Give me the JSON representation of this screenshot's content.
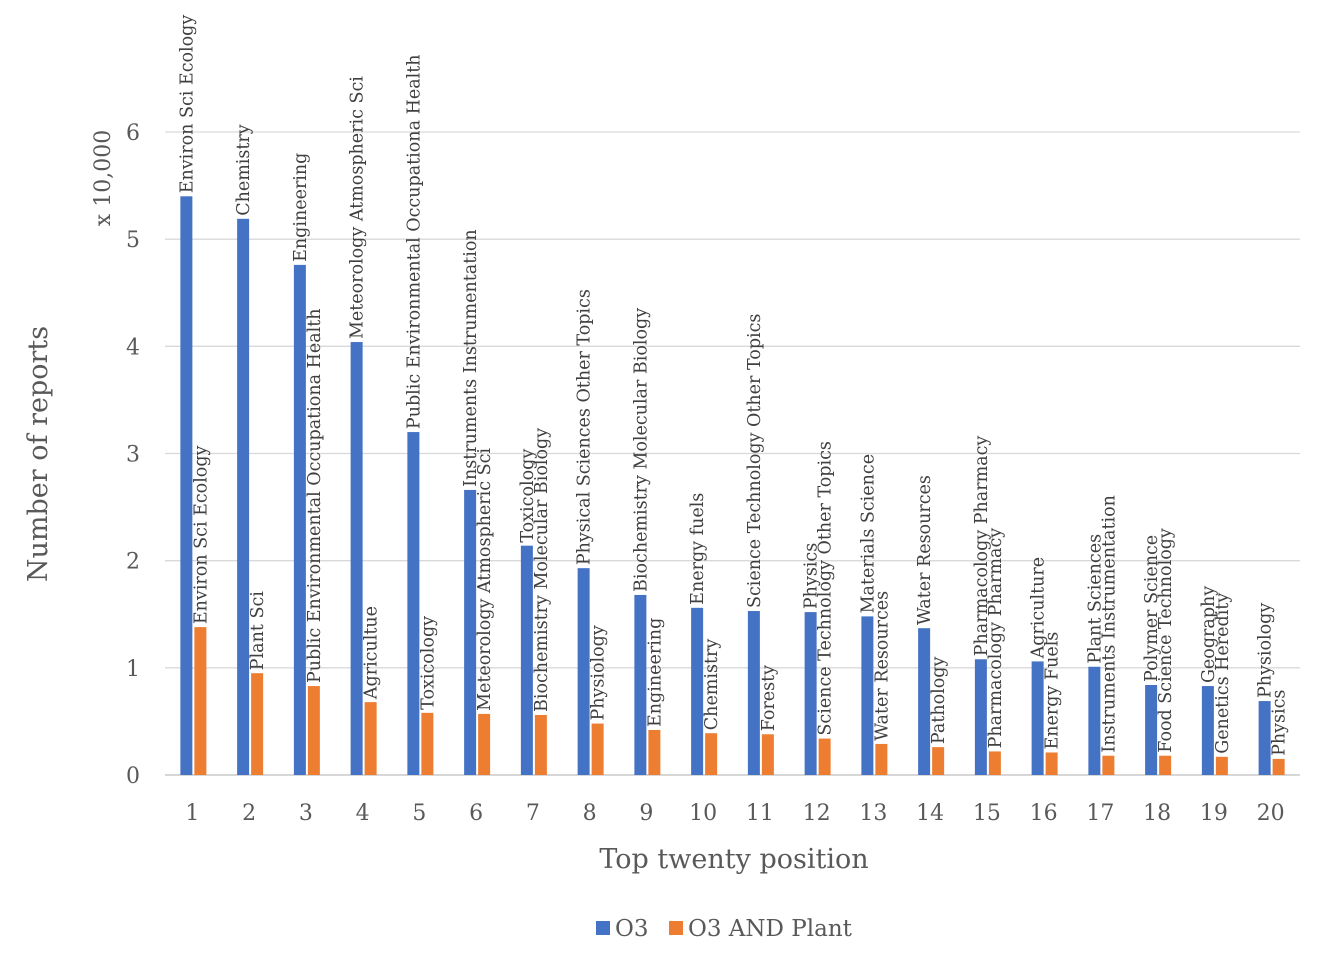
{
  "colors": {
    "o3": "#4472C4",
    "o3_plant": "#ED7D31"
  },
  "chart_data": {
    "type": "bar",
    "title": "",
    "xlabel": "Top twenty position",
    "ylabel": "Number of reports",
    "yunit": "x 10,000",
    "ylim": [
      0,
      6
    ],
    "yticks": [
      "0",
      "1",
      "2",
      "3",
      "4",
      "5",
      "6"
    ],
    "grid": true,
    "legend_position": "bottom",
    "categories": [
      "1",
      "2",
      "3",
      "4",
      "5",
      "6",
      "7",
      "8",
      "9",
      "10",
      "11",
      "12",
      "13",
      "14",
      "15",
      "16",
      "17",
      "18",
      "19",
      "20"
    ],
    "series": [
      {
        "name": "O3",
        "values": [
          5.4,
          5.19,
          4.76,
          4.04,
          3.2,
          2.66,
          2.14,
          1.93,
          1.68,
          1.56,
          1.53,
          1.52,
          1.48,
          1.37,
          1.08,
          1.06,
          1.01,
          0.84,
          0.83,
          0.69
        ],
        "labels": [
          "Environ Sci Ecology",
          "Chemistry",
          "Engineering",
          "Meteorology Atmospheric Sci",
          "Public Environmental Occupationa Health",
          "Instruments Instrumentation",
          "Toxicology",
          "Physical Sciences Other Topics",
          "Biochemistry Molecular Biology",
          "Energy fuels",
          "Science Technology Other Topics",
          "Physics",
          "Materials Science",
          "Water Resources",
          "Pharmacology Pharmacy",
          "Agriculture",
          "Plant Sciences",
          "Polymer Science",
          "Geography",
          "Physiology"
        ]
      },
      {
        "name": "O3 AND Plant",
        "values": [
          1.38,
          0.95,
          0.83,
          0.68,
          0.58,
          0.57,
          0.56,
          0.48,
          0.42,
          0.39,
          0.38,
          0.34,
          0.29,
          0.26,
          0.22,
          0.21,
          0.18,
          0.18,
          0.17,
          0.15
        ],
        "labels": [
          "Environ Sci Ecology",
          "Plant Sci",
          "Public Environmental Occupationa Health",
          "Agricultue",
          "Toxicology",
          "Meteorology Atmospheric Sci",
          "Biochemistry Molecular Biology",
          "Physiology",
          "Engineering",
          "Chemistry",
          "Foresty",
          "Science Technology Other Topics",
          "Water Resources",
          "Pathology",
          "Pharmacology Pharmacy",
          "Energy Fuels",
          "Instruments Instrumentation",
          "Food Science Technology",
          "Genetics Heredity",
          "Physics"
        ]
      }
    ]
  }
}
